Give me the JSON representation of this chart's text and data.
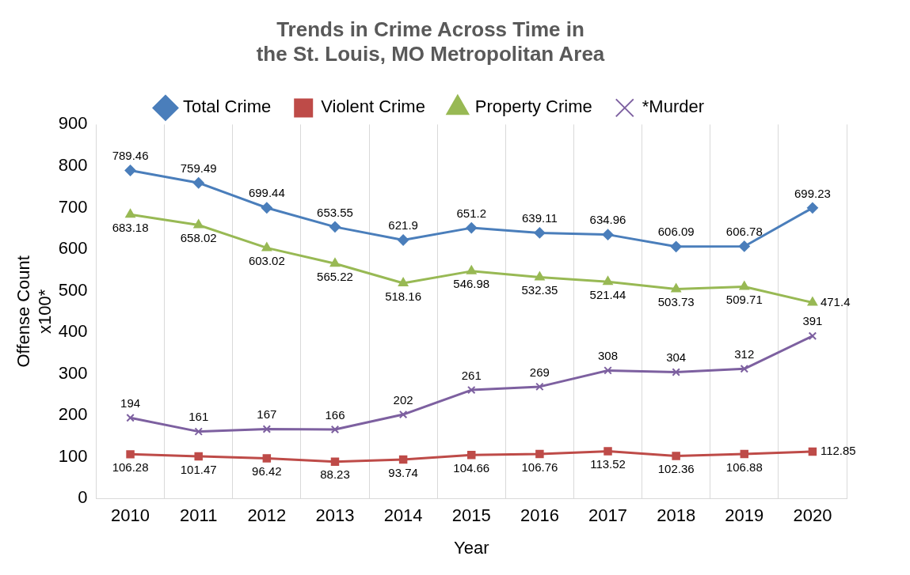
{
  "chart_data": {
    "type": "line",
    "title": "Trends in Crime Across Time in the St. Louis, MO Metropolitan Area",
    "xlabel": "Year",
    "ylabel": "Offense Count x100*",
    "categories": [
      "2010",
      "2011",
      "2012",
      "2013",
      "2014",
      "2015",
      "2016",
      "2017",
      "2018",
      "2019",
      "2020"
    ],
    "series": [
      {
        "name": "Total Crime",
        "color": "#4a7ebb",
        "marker": "diamond",
        "values": [
          789.46,
          759.49,
          699.44,
          653.55,
          621.9,
          651.2,
          639.11,
          634.96,
          606.09,
          606.78,
          699.23
        ]
      },
      {
        "name": "Violent Crime",
        "color": "#be4b48",
        "marker": "square",
        "values": [
          106.28,
          101.47,
          96.42,
          88.23,
          93.74,
          104.66,
          106.76,
          113.52,
          102.36,
          106.88,
          112.85
        ]
      },
      {
        "name": "Property Crime",
        "color": "#98b954",
        "marker": "triangle",
        "values": [
          683.18,
          658.02,
          603.02,
          565.22,
          518.16,
          546.98,
          532.35,
          521.44,
          503.73,
          509.71,
          471.4
        ]
      },
      {
        "name": "*Murder",
        "color": "#7d60a0",
        "marker": "cross",
        "values": [
          194,
          161,
          167,
          166,
          202,
          261,
          269,
          308,
          304,
          312,
          391
        ]
      }
    ],
    "ylim": [
      0,
      900
    ],
    "yticks": [
      0,
      100,
      200,
      300,
      400,
      500,
      600,
      700,
      800,
      900
    ],
    "grid": "x",
    "legend": "top",
    "data_labels": true,
    "line_style": "solid"
  }
}
